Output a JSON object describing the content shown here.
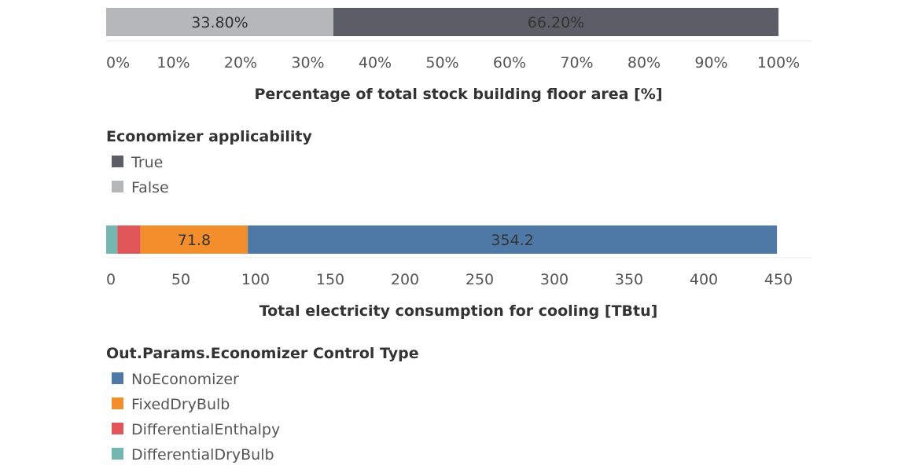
{
  "chart_data": [
    {
      "type": "bar",
      "orientation": "horizontal",
      "stacked": true,
      "title": "",
      "xlabel": "Percentage of total stock building floor area [%]",
      "xlim": [
        0,
        100
      ],
      "ticks": [
        "0%",
        "10%",
        "20%",
        "30%",
        "40%",
        "50%",
        "60%",
        "70%",
        "80%",
        "90%",
        "100%"
      ],
      "series": [
        {
          "name": "False",
          "value": 33.8,
          "label": "33.80%",
          "color": "#b5b7b8"
        },
        {
          "name": "True",
          "value": 66.2,
          "label": "66.20%",
          "color": "#5b5e66"
        }
      ],
      "legend": {
        "title": "Economizer applicability",
        "placement": "below",
        "entries": [
          {
            "label": "True",
            "color": "#5b5e66"
          },
          {
            "label": "False",
            "color": "#b5b7b8"
          }
        ]
      }
    },
    {
      "type": "bar",
      "orientation": "horizontal",
      "stacked": true,
      "title": "",
      "xlabel": "Total electricity consumption for cooling [TBtu]",
      "xlim": [
        0,
        450
      ],
      "ticks": [
        "0",
        "50",
        "100",
        "150",
        "200",
        "250",
        "300",
        "350",
        "400",
        "450"
      ],
      "series": [
        {
          "name": "DifferentialDryBulb",
          "value": 7.5,
          "label": "",
          "color": "#74b7b0"
        },
        {
          "name": "DifferentialEnthalpy",
          "value": 15.5,
          "label": "",
          "color": "#e15759"
        },
        {
          "name": "FixedDryBulb",
          "value": 71.8,
          "label": "71.8",
          "color": "#f28e2b"
        },
        {
          "name": "NoEconomizer",
          "value": 354.2,
          "label": "354.2",
          "color": "#4e79a7"
        }
      ],
      "legend": {
        "title": "Out.Params.Economizer Control Type",
        "placement": "below",
        "entries": [
          {
            "label": "NoEconomizer",
            "color": "#4e79a7"
          },
          {
            "label": "FixedDryBulb",
            "color": "#f28e2b"
          },
          {
            "label": "DifferentialEnthalpy",
            "color": "#e15759"
          },
          {
            "label": "DifferentialDryBulb",
            "color": "#74b7b0"
          }
        ]
      }
    }
  ]
}
